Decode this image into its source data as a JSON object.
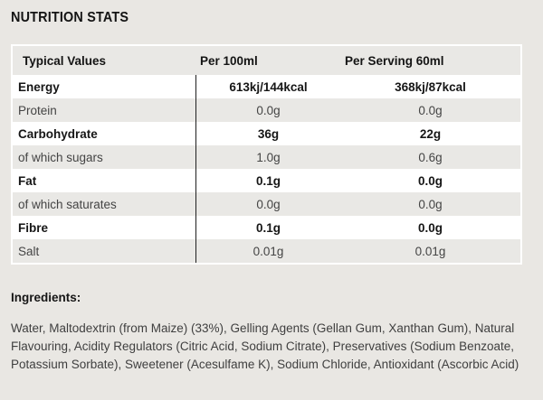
{
  "page": {
    "title": "NUTRITION STATS"
  },
  "colors": {
    "page_background": "#e9e7e3",
    "row_gray": "#e9e8e5",
    "row_white": "#ffffff",
    "table_border": "#ffffff",
    "column_divider": "#202020",
    "bold_text": "#161616",
    "regular_text": "#444444"
  },
  "table": {
    "headers": [
      "Typical Values",
      "Per 100ml",
      "Per Serving 60ml"
    ],
    "rows": [
      {
        "label": "Energy",
        "per_100ml": "613kj/144kcal",
        "per_serving": "368kj/87kcal",
        "bold": true
      },
      {
        "label": "Protein",
        "per_100ml": "0.0g",
        "per_serving": "0.0g",
        "bold": false
      },
      {
        "label": "Carbohydrate",
        "per_100ml": "36g",
        "per_serving": "22g",
        "bold": true
      },
      {
        "label": "of which sugars",
        "per_100ml": "1.0g",
        "per_serving": "0.6g",
        "bold": false
      },
      {
        "label": "Fat",
        "per_100ml": "0.1g",
        "per_serving": "0.0g",
        "bold": true
      },
      {
        "label": "of which saturates",
        "per_100ml": "0.0g",
        "per_serving": "0.0g",
        "bold": false
      },
      {
        "label": "Fibre",
        "per_100ml": "0.1g",
        "per_serving": "0.0g",
        "bold": true
      },
      {
        "label": "Salt",
        "per_100ml": "0.01g",
        "per_serving": "0.01g",
        "bold": false
      }
    ]
  },
  "ingredients": {
    "heading": "Ingredients:",
    "text": "Water, Maltodextrin (from Maize) (33%), Gelling Agents (Gellan Gum, Xanthan Gum), Natural Flavouring, Acidity Regulators (Citric Acid, Sodium Citrate), Preservatives (Sodium Benzoate, Potassium Sorbate), Sweetener (Acesulfame K), Sodium Chloride, Antioxidant (Ascorbic Acid)"
  }
}
